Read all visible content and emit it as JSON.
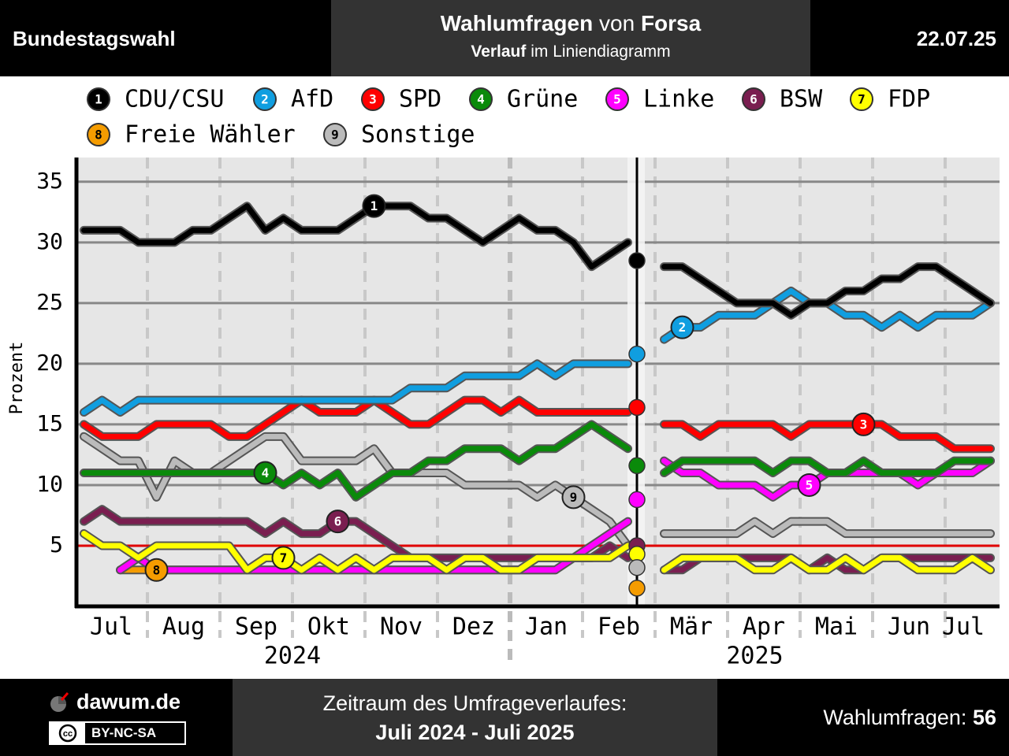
{
  "header": {
    "left": "Bundestagswahl",
    "title_1": "Wahlumfragen",
    "title_2": "von",
    "title_3": "Forsa",
    "subtitle_1": "Verlauf",
    "subtitle_2": "im Liniendiagramm",
    "date": "22.07.25"
  },
  "chart_data": {
    "type": "line",
    "y_label": "Prozent",
    "ylim": [
      0,
      37
    ],
    "yticks": [
      5,
      10,
      15,
      20,
      25,
      30,
      35
    ],
    "grid": true,
    "threshold": 5,
    "threshold_color": "#e00000",
    "categories": [
      null,
      null,
      "Jul",
      null,
      null,
      null,
      "Aug",
      null,
      null,
      null,
      "Sep",
      null,
      null,
      null,
      "Okt",
      null,
      null,
      null,
      "Nov",
      null,
      null,
      null,
      "Dez",
      null,
      null,
      null,
      "Jan",
      null,
      null,
      null,
      "Feb",
      null,
      null,
      null,
      "Mär",
      null,
      null,
      null,
      "Apr",
      null,
      null,
      null,
      "Mai",
      null,
      null,
      null,
      "Jun",
      null,
      null,
      "Jul",
      null
    ],
    "years": [
      "2024",
      "2025"
    ],
    "series": [
      {
        "name": "CDU/CSU",
        "number": "1",
        "color": "#000000",
        "result": 28.5,
        "values": [
          31,
          31,
          31,
          30,
          30,
          30,
          31,
          31,
          32,
          33,
          31,
          32,
          31,
          31,
          31,
          32,
          33,
          33,
          33,
          32,
          32,
          31,
          30,
          31,
          32,
          31,
          31,
          30,
          28,
          29,
          30,
          null,
          28,
          28,
          27,
          26,
          25,
          25,
          25,
          24,
          25,
          25,
          26,
          26,
          27,
          27,
          28,
          28,
          27,
          26,
          25
        ]
      },
      {
        "name": "AfD",
        "number": "2",
        "color": "#109ee0",
        "result": 20.8,
        "values": [
          16,
          17,
          16,
          17,
          17,
          17,
          17,
          17,
          17,
          17,
          17,
          17,
          17,
          17,
          17,
          17,
          17,
          17,
          18,
          18,
          18,
          19,
          19,
          19,
          19,
          20,
          19,
          20,
          20,
          20,
          20,
          null,
          22,
          23,
          23,
          24,
          24,
          24,
          25,
          26,
          25,
          25,
          24,
          24,
          23,
          24,
          23,
          24,
          24,
          24,
          25
        ]
      },
      {
        "name": "SPD",
        "number": "3",
        "color": "#ff0000",
        "result": 16.4,
        "values": [
          15,
          14,
          14,
          14,
          15,
          15,
          15,
          15,
          14,
          14,
          15,
          16,
          17,
          16,
          16,
          16,
          17,
          16,
          15,
          15,
          16,
          17,
          17,
          16,
          17,
          16,
          16,
          16,
          16,
          16,
          16,
          null,
          15,
          15,
          14,
          15,
          15,
          15,
          15,
          14,
          15,
          15,
          15,
          15,
          15,
          14,
          14,
          14,
          13,
          13,
          13
        ]
      },
      {
        "name": "Grüne",
        "number": "4",
        "color": "#0a8a0a",
        "result": 11.6,
        "values": [
          11,
          11,
          11,
          11,
          11,
          11,
          11,
          11,
          11,
          11,
          11,
          10,
          11,
          10,
          11,
          9,
          10,
          11,
          11,
          12,
          12,
          13,
          13,
          13,
          12,
          13,
          13,
          14,
          15,
          14,
          13,
          null,
          11,
          12,
          12,
          12,
          12,
          12,
          11,
          12,
          12,
          11,
          11,
          12,
          11,
          11,
          11,
          11,
          12,
          12,
          12
        ]
      },
      {
        "name": "Linke",
        "number": "5",
        "color": "#ff00ff",
        "result": 8.8,
        "values": [
          null,
          null,
          3,
          4,
          3,
          3,
          3,
          3,
          3,
          3,
          3,
          3,
          3,
          3,
          3,
          3,
          3,
          3,
          3,
          3,
          3,
          3,
          3,
          3,
          3,
          3,
          3,
          4,
          5,
          6,
          7,
          null,
          12,
          11,
          11,
          10,
          10,
          10,
          9,
          10,
          10,
          11,
          11,
          11,
          11,
          11,
          10,
          11,
          11,
          11,
          12
        ]
      },
      {
        "name": "BSW",
        "number": "6",
        "color": "#7a1e50",
        "result": 5,
        "values": [
          7,
          8,
          7,
          7,
          7,
          7,
          7,
          7,
          7,
          7,
          6,
          7,
          6,
          6,
          7,
          7,
          6,
          5,
          4,
          4,
          4,
          4,
          4,
          4,
          4,
          4,
          4,
          4,
          4,
          5,
          4,
          null,
          3,
          3,
          4,
          4,
          4,
          4,
          4,
          4,
          3,
          4,
          3,
          3,
          4,
          4,
          4,
          4,
          4,
          4,
          4
        ]
      },
      {
        "name": "FDP",
        "number": "7",
        "color": "#ffff00",
        "result": 4.3,
        "values": [
          6,
          5,
          5,
          4,
          5,
          5,
          5,
          5,
          5,
          3,
          4,
          4,
          3,
          4,
          3,
          4,
          3,
          4,
          4,
          4,
          3,
          4,
          4,
          3,
          3,
          4,
          4,
          4,
          4,
          4,
          5,
          null,
          3,
          4,
          4,
          4,
          4,
          3,
          3,
          4,
          3,
          3,
          4,
          3,
          4,
          4,
          3,
          3,
          3,
          4,
          3
        ]
      },
      {
        "name": "Freie Wähler",
        "number": "8",
        "color": "#f59c00",
        "result": 1.5,
        "values": [
          null,
          null,
          3,
          3,
          3,
          3,
          3,
          3,
          3,
          3,
          3,
          3,
          3,
          3,
          3,
          3,
          3,
          3,
          3,
          3,
          3,
          3,
          3,
          3,
          3,
          3,
          3,
          null,
          null,
          null,
          null,
          null,
          null,
          null,
          null,
          null,
          null,
          null,
          null,
          null,
          null,
          null,
          null,
          null,
          null,
          null,
          null,
          null,
          null,
          null,
          null
        ]
      },
      {
        "name": "Sonstige",
        "number": "9",
        "color": "#bbbbbb",
        "result": 3.2,
        "values": [
          14,
          13,
          12,
          12,
          9,
          12,
          11,
          11,
          12,
          13,
          14,
          14,
          12,
          12,
          12,
          12,
          13,
          11,
          11,
          11,
          11,
          10,
          10,
          10,
          10,
          9,
          10,
          9,
          8,
          7,
          5,
          null,
          6,
          6,
          6,
          6,
          6,
          7,
          6,
          7,
          7,
          7,
          6,
          6,
          6,
          6,
          6,
          6,
          6,
          6,
          6
        ]
      }
    ]
  },
  "footer": {
    "site": "dawum.de",
    "license": "BY-NC-SA",
    "period_label": "Zeitraum des Umfrageverlaufes:",
    "period": "Juli 2024 - Juli 2025",
    "count_label": "Wahlumfragen:",
    "count": "56"
  }
}
